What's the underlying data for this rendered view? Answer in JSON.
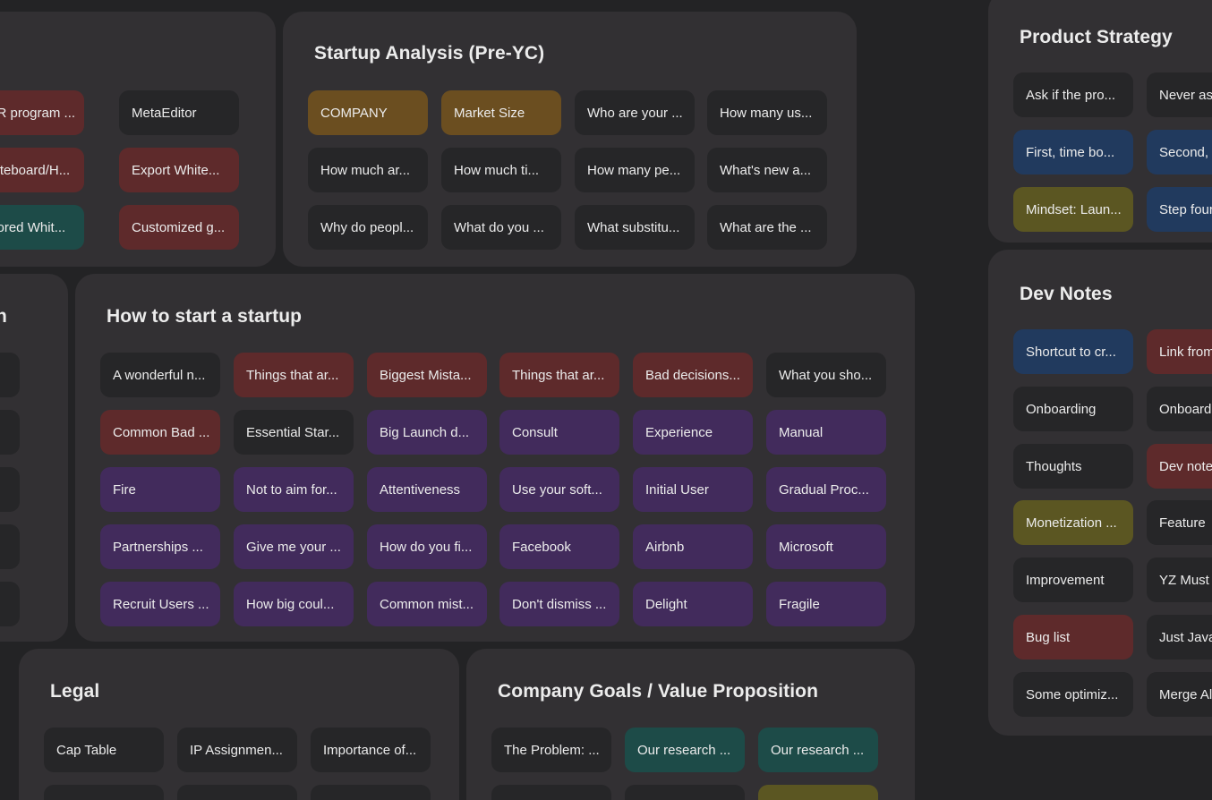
{
  "boards": {
    "top_left": {
      "cards": [
        "OCR program ...",
        "MetaEditor",
        "Whiteboard/H...",
        "Export White...",
        "Colored Whit...",
        "Customized g..."
      ]
    },
    "startup_analysis": {
      "title": "Startup Analysis (Pre-YC)",
      "cards": [
        "COMPANY",
        "Market Size",
        "Who are your ...",
        "How many us...",
        "How much ar...",
        "How much ti...",
        "How many pe...",
        "What's new a...",
        "Why do peopl...",
        "What do you ...",
        "What substitu...",
        "What are the ..."
      ]
    },
    "product_strategy": {
      "title": "Product Strategy",
      "cards": [
        "Ask if the pro...",
        "Never as",
        "First, time bo...",
        "Second, ",
        "Mindset: Laun...",
        "Step four"
      ]
    },
    "left_partial": {
      "title": "n",
      "cards": [
        "",
        "",
        "",
        "",
        ""
      ]
    },
    "how_to_start": {
      "title": "How to start a startup",
      "cards": [
        "A wonderful n...",
        "Things that ar...",
        "Biggest Mista...",
        "Things that ar...",
        "Bad decisions...",
        "What you sho...",
        "Common Bad ...",
        "Essential Star...",
        "Big Launch d...",
        "Consult",
        "Experience",
        "Manual",
        "Fire",
        "Not to aim for...",
        "Attentiveness",
        "Use your soft...",
        "Initial User",
        "Gradual Proc...",
        "Partnerships ...",
        "Give me your ...",
        "How do you fi...",
        "Facebook",
        "Airbnb",
        "Microsoft",
        "Recruit Users ...",
        "How big coul...",
        "Common mist...",
        "Don't dismiss ...",
        "Delight",
        "Fragile"
      ]
    },
    "dev_notes": {
      "title": "Dev Notes",
      "cards": [
        "Shortcut to cr...",
        "Link from",
        "Onboarding",
        "Onboard",
        "Thoughts",
        "Dev note",
        "Monetization ...",
        "Feature",
        "Improvement",
        "YZ Must",
        "Bug list",
        "Just Java",
        "Some optimiz...",
        "Merge Al"
      ]
    },
    "legal": {
      "title": "Legal",
      "cards": [
        "Cap Table",
        "IP Assignmen...",
        "Importance of...",
        "",
        "",
        ""
      ]
    },
    "company_goals": {
      "title": "Company Goals / Value Proposition",
      "cards": [
        "The Problem: ...",
        "Our research ...",
        "Our research ...",
        "",
        "",
        ""
      ]
    }
  },
  "colors": {
    "background": "#232325",
    "board": "#323033",
    "card_default": "#262628",
    "card_red": "#5e2a2b",
    "card_brown": "#6b4e20",
    "card_purple": "#422b5c",
    "card_teal": "#1d4b48",
    "card_blue": "#213a5e",
    "card_olive": "#5b5622"
  }
}
